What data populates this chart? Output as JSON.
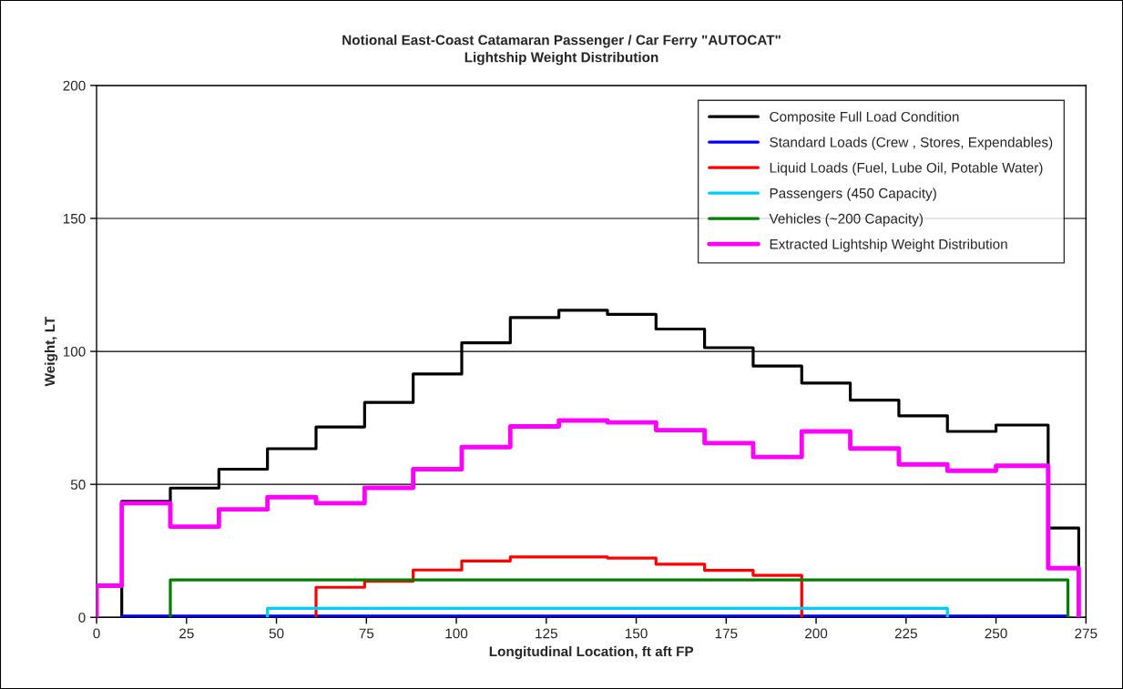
{
  "chart_data": {
    "type": "step",
    "title": "Notional East-Coast Catamaran Passenger / Car Ferry \"AUTOCAT\"",
    "subtitle": "Lightship Weight Distribution",
    "xlabel": "Longitudinal Location, ft aft FP",
    "ylabel": "Weight, LT",
    "xlim": [
      0,
      275
    ],
    "xticks": [
      0,
      25,
      50,
      75,
      100,
      125,
      150,
      175,
      200,
      225,
      250,
      275
    ],
    "ylim": [
      0,
      200
    ],
    "yticks": [
      0,
      50,
      100,
      150,
      200
    ],
    "grid": "y",
    "legend": "top right",
    "series": [
      {
        "name": "Composite Full Load Condition",
        "color": "#000000",
        "x": [
          7,
          7,
          20.5,
          34,
          47.5,
          61,
          74.5,
          88,
          101.5,
          115,
          128.5,
          142,
          155.5,
          169,
          182.5,
          196,
          209.5,
          223,
          236.5,
          250,
          264.5,
          273
        ],
        "values": [
          0,
          43.6,
          48.6,
          55.7,
          63.4,
          71.6,
          80.8,
          91.5,
          103.2,
          112.7,
          115.5,
          113.9,
          108.4,
          101.4,
          94.5,
          88.1,
          81.7,
          75.8,
          69.9,
          72.3,
          33.6,
          0
        ]
      },
      {
        "name": "Standard Loads (Crew , Stores, Expendables)",
        "color": "#0000ff",
        "x": [
          7,
          7,
          20.5,
          34,
          47.5,
          61,
          74.5,
          88,
          101.5,
          115,
          128.5,
          142,
          155.5,
          169,
          182.5,
          196,
          209.5,
          223,
          236.5,
          250,
          264.5,
          270
        ],
        "values": [
          0,
          0.5,
          0.5,
          0.5,
          0.5,
          0.5,
          0.5,
          0.5,
          0.5,
          0.5,
          0.5,
          0.5,
          0.5,
          0.5,
          0.5,
          0.5,
          0.5,
          0.5,
          0.5,
          0.5,
          0.5,
          0
        ]
      },
      {
        "name": "Liquid Loads (Fuel, Lube Oil, Potable Water)",
        "color": "#ff0000",
        "x": [
          61,
          61,
          74.5,
          88,
          101.5,
          115,
          128.5,
          142,
          155.5,
          169,
          182.5,
          196
        ],
        "values": [
          0,
          11.3,
          13.6,
          17.8,
          21.2,
          22.7,
          22.7,
          22.3,
          20.0,
          17.7,
          15.8,
          0
        ]
      },
      {
        "name": "Passengers (450 Capacity)",
        "color": "#00ccff",
        "x": [
          47.5,
          47.5,
          61,
          74.5,
          88,
          101.5,
          115,
          128.5,
          142,
          155.5,
          169,
          182.5,
          196,
          209.5,
          223,
          236.5
        ],
        "values": [
          0,
          3.4,
          3.4,
          3.4,
          3.4,
          3.4,
          3.4,
          3.4,
          3.4,
          3.4,
          3.4,
          3.4,
          3.4,
          3.4,
          3.4,
          0
        ]
      },
      {
        "name": "Vehicles (~200 Capacity)",
        "color": "#008000",
        "x": [
          20.5,
          20.5,
          270
        ],
        "values": [
          0,
          14.1,
          0
        ]
      },
      {
        "name": "Extracted Lightship Weight Distribution",
        "color": "#ff00ff",
        "x": [
          0,
          0,
          7,
          20.5,
          34,
          47.5,
          61,
          74.5,
          88,
          101.5,
          115,
          128.5,
          142,
          155.5,
          169,
          182.5,
          196,
          209.5,
          223,
          236.5,
          250,
          264.5,
          273
        ],
        "values": [
          0,
          11.9,
          42.9,
          34.1,
          40.6,
          45.2,
          42.9,
          48.7,
          55.7,
          64.0,
          71.8,
          74.0,
          73.3,
          70.4,
          65.5,
          60.3,
          69.9,
          63.5,
          57.5,
          55.1,
          57.0,
          18.5,
          0
        ]
      }
    ]
  }
}
